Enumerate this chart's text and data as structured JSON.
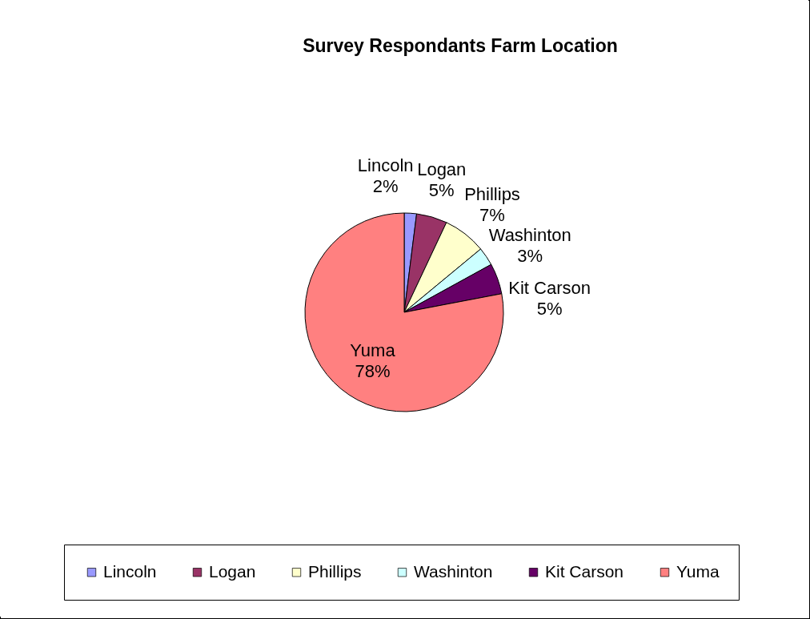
{
  "chart_data": {
    "type": "pie",
    "title": "Survey Respondants  Farm Location",
    "categories": [
      "Lincoln",
      "Logan",
      "Phillips",
      "Washinton",
      "Kit Carson",
      "Yuma"
    ],
    "values": [
      2,
      5,
      7,
      3,
      5,
      78
    ],
    "value_labels": [
      "2%",
      "5%",
      "7%",
      "3%",
      "5%",
      "78%"
    ],
    "colors": [
      "#9999ff",
      "#993366",
      "#ffffcc",
      "#ccffff",
      "#660066",
      "#ff8080"
    ],
    "legend": "bottom"
  }
}
